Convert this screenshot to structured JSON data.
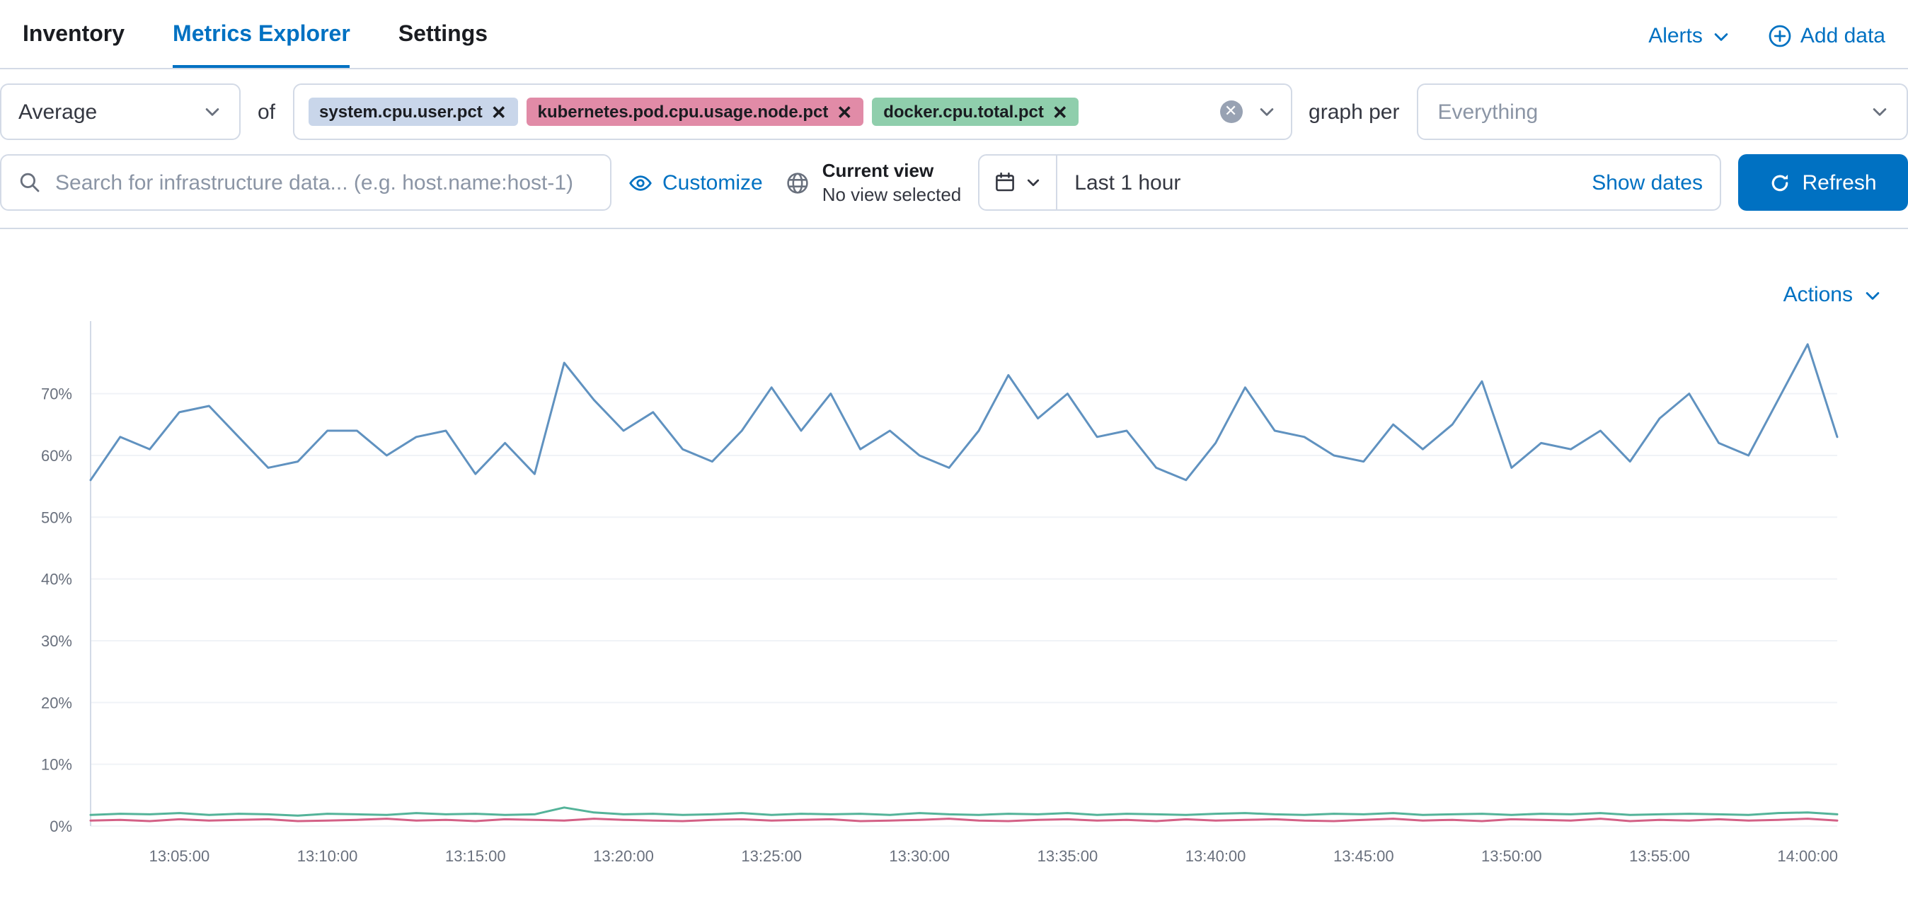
{
  "nav": {
    "tabs": [
      {
        "label": "Inventory",
        "active": false
      },
      {
        "label": "Metrics Explorer",
        "active": true
      },
      {
        "label": "Settings",
        "active": false
      }
    ],
    "alerts_label": "Alerts",
    "add_data_label": "Add data"
  },
  "metricbar": {
    "aggregation_value": "Average",
    "of_label": "of",
    "metrics": [
      {
        "label": "system.cpu.user.pct",
        "color": "#c9d6ea"
      },
      {
        "label": "kubernetes.pod.cpu.usage.node.pct",
        "color": "#e18ba7"
      },
      {
        "label": "docker.cpu.total.pct",
        "color": "#8fceac"
      }
    ],
    "graph_per_label": "graph per",
    "group_by_placeholder": "Everything"
  },
  "toolbar": {
    "search_placeholder": "Search for infrastructure data... (e.g. host.name:host-1)",
    "customize_label": "Customize",
    "current_view_title": "Current view",
    "current_view_value": "No view selected",
    "time_range": "Last 1 hour",
    "show_dates_label": "Show dates",
    "refresh_label": "Refresh"
  },
  "chart": {
    "actions_label": "Actions"
  },
  "colors": {
    "primary": "#0071c2",
    "border": "#d3dae6",
    "series_blue": "#6092C0",
    "series_pink": "#D36086",
    "series_green": "#54B399"
  },
  "chart_data": {
    "type": "line",
    "title": "",
    "xlabel": "",
    "ylabel": "",
    "ylim": [
      0,
      79
    ],
    "legend": "none",
    "grid": true,
    "y_ticks": [
      0,
      10,
      20,
      30,
      40,
      50,
      60,
      70
    ],
    "x_ticks": [
      "13:05:00",
      "13:10:00",
      "13:15:00",
      "13:20:00",
      "13:25:00",
      "13:30:00",
      "13:35:00",
      "13:40:00",
      "13:45:00",
      "13:50:00",
      "13:55:00",
      "14:00:00"
    ],
    "x": [
      "13:02:00",
      "13:03:00",
      "13:04:00",
      "13:05:00",
      "13:06:00",
      "13:07:00",
      "13:08:00",
      "13:09:00",
      "13:10:00",
      "13:11:00",
      "13:12:00",
      "13:13:00",
      "13:14:00",
      "13:15:00",
      "13:16:00",
      "13:17:00",
      "13:18:00",
      "13:19:00",
      "13:20:00",
      "13:21:00",
      "13:22:00",
      "13:23:00",
      "13:24:00",
      "13:25:00",
      "13:26:00",
      "13:27:00",
      "13:28:00",
      "13:29:00",
      "13:30:00",
      "13:31:00",
      "13:32:00",
      "13:33:00",
      "13:34:00",
      "13:35:00",
      "13:36:00",
      "13:37:00",
      "13:38:00",
      "13:39:00",
      "13:40:00",
      "13:41:00",
      "13:42:00",
      "13:43:00",
      "13:44:00",
      "13:45:00",
      "13:46:00",
      "13:47:00",
      "13:48:00",
      "13:49:00",
      "13:50:00",
      "13:51:00",
      "13:52:00",
      "13:53:00",
      "13:54:00",
      "13:55:00",
      "13:56:00",
      "13:57:00",
      "13:58:00",
      "13:59:00",
      "14:00:00",
      "14:01:00"
    ],
    "series": [
      {
        "name": "system.cpu.user.pct",
        "color": "#6092C0",
        "unit": "%",
        "values": [
          56,
          63,
          61,
          67,
          68,
          63,
          58,
          59,
          64,
          64,
          60,
          63,
          64,
          57,
          62,
          57,
          75,
          69,
          64,
          67,
          61,
          59,
          64,
          71,
          64,
          70,
          61,
          64,
          60,
          58,
          64,
          73,
          66,
          70,
          63,
          64,
          58,
          56,
          62,
          71,
          64,
          63,
          60,
          59,
          65,
          61,
          65,
          72,
          58,
          62,
          61,
          64,
          59,
          66,
          70,
          62,
          60,
          69,
          78,
          63
        ]
      },
      {
        "name": "kubernetes.pod.cpu.usage.node.pct",
        "color": "#D36086",
        "unit": "%",
        "values": [
          0.9,
          1,
          0.8,
          1.1,
          0.9,
          1,
          1.1,
          0.8,
          0.9,
          1,
          1.2,
          0.9,
          1,
          0.8,
          1.1,
          1,
          0.9,
          1.2,
          1,
          0.9,
          0.8,
          1,
          1.1,
          0.9,
          1,
          1.1,
          0.8,
          0.9,
          1,
          1.2,
          0.9,
          0.8,
          1,
          1.1,
          0.9,
          1,
          0.8,
          1.1,
          0.9,
          1,
          1.1,
          0.9,
          0.8,
          1,
          1.2,
          0.9,
          1,
          0.8,
          1.1,
          1,
          0.9,
          1.2,
          0.8,
          1,
          0.9,
          1.1,
          0.9,
          1,
          1.2,
          0.9
        ]
      },
      {
        "name": "docker.cpu.total.pct",
        "color": "#54B399",
        "unit": "%",
        "values": [
          1.8,
          2,
          1.9,
          2.1,
          1.8,
          2,
          1.9,
          1.7,
          2,
          1.9,
          1.8,
          2.1,
          1.9,
          2,
          1.8,
          1.9,
          3,
          2.2,
          1.9,
          2,
          1.8,
          1.9,
          2.1,
          1.8,
          2,
          1.9,
          2,
          1.8,
          2.1,
          1.9,
          1.8,
          2,
          1.9,
          2.1,
          1.8,
          2,
          1.9,
          1.8,
          2,
          2.1,
          1.9,
          1.8,
          2,
          1.9,
          2.1,
          1.8,
          1.9,
          2,
          1.8,
          2,
          1.9,
          2.1,
          1.8,
          1.9,
          2,
          1.9,
          1.8,
          2.1,
          2.2,
          1.9
        ]
      }
    ]
  }
}
